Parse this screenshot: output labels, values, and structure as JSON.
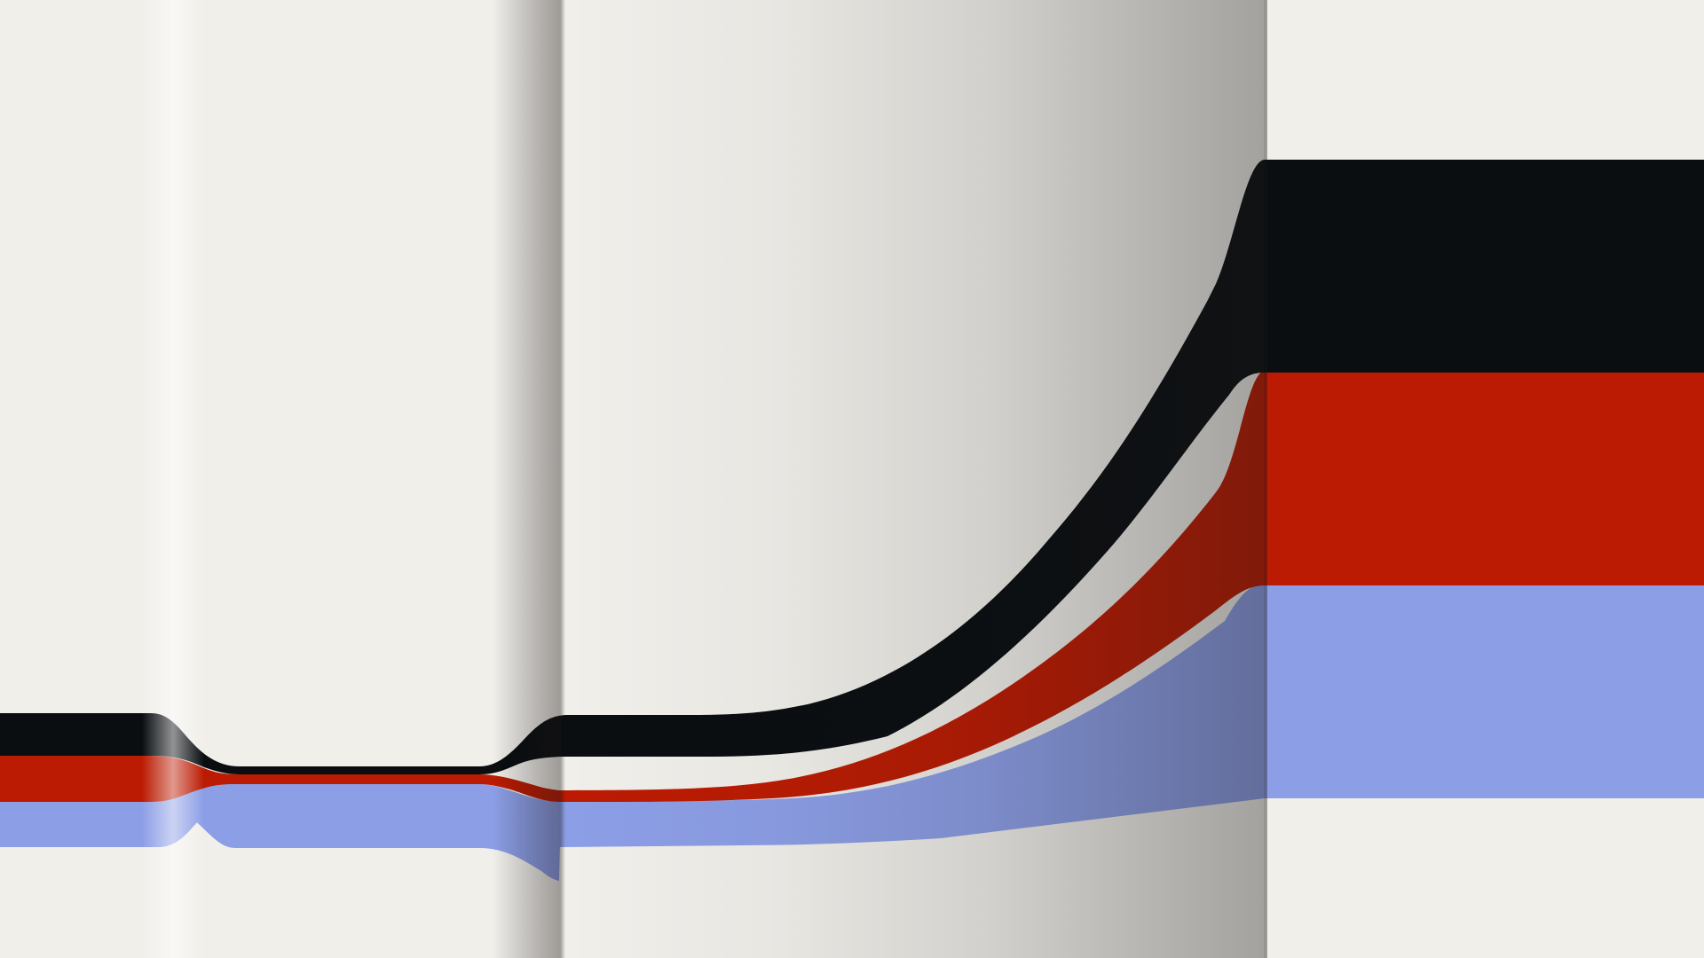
{
  "colors": {
    "background": "#f1efea",
    "band_top": "#0a0e11",
    "band_middle": "#bb1b02",
    "band_bottom": "#8c9ee6",
    "fold_shadow": "#a8a6a4"
  }
}
